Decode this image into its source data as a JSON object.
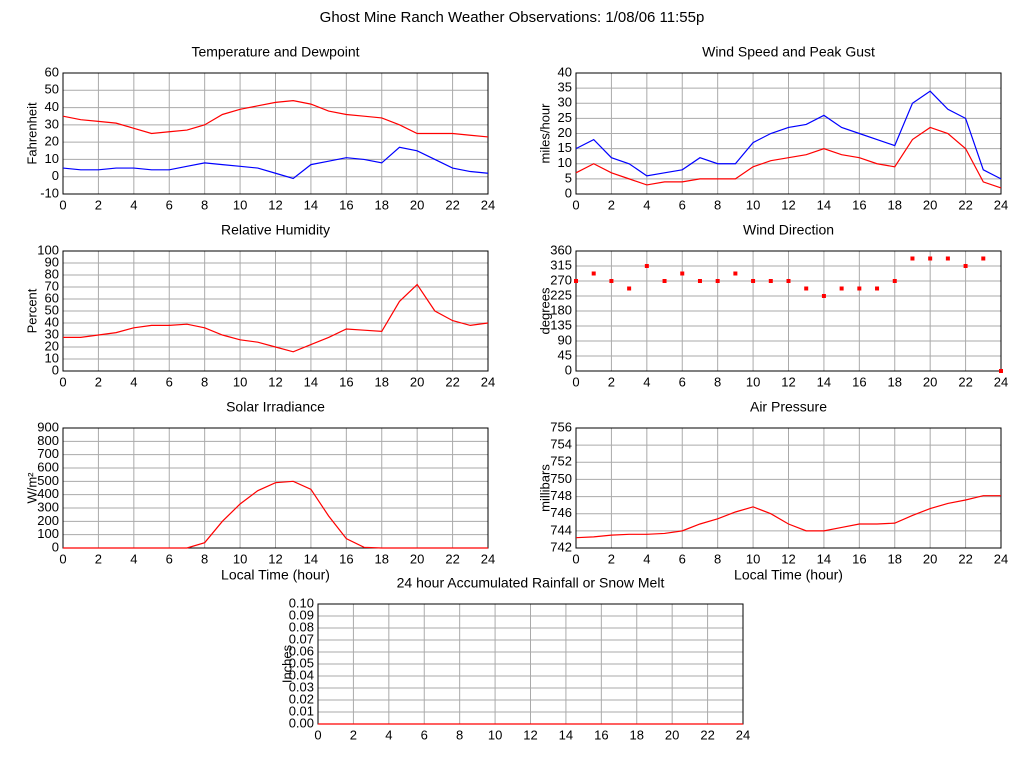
{
  "title": "Ghost Mine Ranch Weather Observations: 1/08/06 11:55p",
  "chart_data": [
    {
      "type": "line",
      "title": "Temperature and Dewpoint",
      "ylabel": "Fahrenheit",
      "x": [
        0,
        1,
        2,
        3,
        4,
        5,
        6,
        7,
        8,
        9,
        10,
        11,
        12,
        13,
        14,
        15,
        16,
        17,
        18,
        19,
        20,
        21,
        22,
        23,
        24
      ],
      "series": [
        {
          "name": "Temperature",
          "color": "#ff0000",
          "values": [
            35,
            33,
            32,
            31,
            28,
            25,
            26,
            27,
            30,
            36,
            39,
            41,
            43,
            44,
            42,
            38,
            36,
            35,
            34,
            30,
            25,
            25,
            25,
            24,
            23
          ]
        },
        {
          "name": "Dewpoint",
          "color": "#0000ff",
          "values": [
            5,
            4,
            4,
            5,
            5,
            4,
            4,
            6,
            8,
            7,
            6,
            5,
            2,
            -1,
            7,
            9,
            11,
            10,
            8,
            17,
            15,
            10,
            5,
            3,
            2
          ]
        }
      ],
      "xlim": [
        0,
        24
      ],
      "xticks": [
        0,
        2,
        4,
        6,
        8,
        10,
        12,
        14,
        16,
        18,
        20,
        22,
        24
      ],
      "ylim": [
        -10,
        60
      ],
      "yticks": [
        -10,
        0,
        10,
        20,
        30,
        40,
        50,
        60
      ],
      "grid": true
    },
    {
      "type": "line",
      "title": "Wind Speed and Peak Gust",
      "ylabel": "miles/hour",
      "x": [
        0,
        1,
        2,
        3,
        4,
        5,
        6,
        7,
        8,
        9,
        10,
        11,
        12,
        13,
        14,
        15,
        16,
        17,
        18,
        19,
        20,
        21,
        22,
        23,
        24
      ],
      "series": [
        {
          "name": "Peak Gust",
          "color": "#0000ff",
          "values": [
            15,
            18,
            12,
            10,
            6,
            7,
            8,
            12,
            10,
            10,
            17,
            20,
            22,
            23,
            26,
            22,
            20,
            18,
            16,
            30,
            34,
            28,
            25,
            8,
            5
          ]
        },
        {
          "name": "Wind Speed",
          "color": "#ff0000",
          "values": [
            7,
            10,
            7,
            5,
            3,
            4,
            4,
            5,
            5,
            5,
            9,
            11,
            12,
            13,
            15,
            13,
            12,
            10,
            9,
            18,
            22,
            20,
            15,
            4,
            2
          ]
        }
      ],
      "xlim": [
        0,
        24
      ],
      "xticks": [
        0,
        2,
        4,
        6,
        8,
        10,
        12,
        14,
        16,
        18,
        20,
        22,
        24
      ],
      "ylim": [
        0,
        40
      ],
      "yticks": [
        0,
        5,
        10,
        15,
        20,
        25,
        30,
        35,
        40
      ],
      "grid": true
    },
    {
      "type": "line",
      "title": "Relative Humidity",
      "ylabel": "Percent",
      "x": [
        0,
        1,
        2,
        3,
        4,
        5,
        6,
        7,
        8,
        9,
        10,
        11,
        12,
        13,
        14,
        15,
        16,
        17,
        18,
        19,
        20,
        21,
        22,
        23,
        24
      ],
      "series": [
        {
          "name": "Relative Humidity",
          "color": "#ff0000",
          "values": [
            28,
            28,
            30,
            32,
            36,
            38,
            38,
            39,
            36,
            30,
            26,
            24,
            20,
            16,
            22,
            28,
            35,
            34,
            33,
            58,
            72,
            50,
            42,
            38,
            40
          ]
        }
      ],
      "xlim": [
        0,
        24
      ],
      "xticks": [
        0,
        2,
        4,
        6,
        8,
        10,
        12,
        14,
        16,
        18,
        20,
        22,
        24
      ],
      "ylim": [
        0,
        100
      ],
      "yticks": [
        0,
        10,
        20,
        30,
        40,
        50,
        60,
        70,
        80,
        90,
        100
      ],
      "grid": true
    },
    {
      "type": "scatter",
      "title": "Wind Direction",
      "ylabel": "degrees",
      "x": [
        0,
        1,
        2,
        3,
        4,
        5,
        6,
        7,
        8,
        9,
        10,
        11,
        12,
        13,
        14,
        15,
        16,
        17,
        18,
        19,
        20,
        21,
        22,
        23,
        24
      ],
      "series": [
        {
          "name": "Wind Direction",
          "color": "#ff0000",
          "values": [
            270,
            292.5,
            270,
            247.5,
            315,
            270,
            292.5,
            270,
            270,
            292.5,
            270,
            270,
            270,
            247.5,
            225,
            247.5,
            247.5,
            247.5,
            270,
            337.5,
            337.5,
            337.5,
            315,
            337.5,
            0
          ]
        }
      ],
      "xlim": [
        0,
        24
      ],
      "xticks": [
        0,
        2,
        4,
        6,
        8,
        10,
        12,
        14,
        16,
        18,
        20,
        22,
        24
      ],
      "ylim": [
        0,
        360
      ],
      "yticks": [
        0,
        45,
        90,
        135,
        180,
        225,
        270,
        315,
        360
      ],
      "grid": true
    },
    {
      "type": "line",
      "title": "Solar Irradiance",
      "ylabel": "W/m²",
      "xlabel": "Local Time (hour)",
      "x": [
        0,
        1,
        2,
        3,
        4,
        5,
        6,
        7,
        8,
        9,
        10,
        11,
        12,
        13,
        14,
        15,
        16,
        17,
        18,
        19,
        20,
        21,
        22,
        23,
        24
      ],
      "series": [
        {
          "name": "Solar Irradiance",
          "color": "#ff0000",
          "values": [
            0,
            0,
            0,
            0,
            0,
            0,
            0,
            0,
            40,
            200,
            330,
            430,
            490,
            500,
            440,
            240,
            70,
            5,
            0,
            0,
            0,
            0,
            0,
            0,
            0
          ]
        }
      ],
      "xlim": [
        0,
        24
      ],
      "xticks": [
        0,
        2,
        4,
        6,
        8,
        10,
        12,
        14,
        16,
        18,
        20,
        22,
        24
      ],
      "ylim": [
        0,
        900
      ],
      "yticks": [
        0,
        100,
        200,
        300,
        400,
        500,
        600,
        700,
        800,
        900
      ],
      "grid": true
    },
    {
      "type": "line",
      "title": "Air Pressure",
      "ylabel": "millibars",
      "xlabel": "Local Time (hour)",
      "x": [
        0,
        1,
        2,
        3,
        4,
        5,
        6,
        7,
        8,
        9,
        10,
        11,
        12,
        13,
        14,
        15,
        16,
        17,
        18,
        19,
        20,
        21,
        22,
        23,
        24
      ],
      "series": [
        {
          "name": "Air Pressure",
          "color": "#ff0000",
          "values": [
            743.2,
            743.3,
            743.5,
            743.6,
            743.6,
            743.7,
            744.0,
            744.8,
            745.4,
            746.2,
            746.8,
            746.0,
            744.8,
            744.0,
            744.0,
            744.4,
            744.8,
            744.8,
            744.9,
            745.8,
            746.6,
            747.2,
            747.6,
            748.1,
            748.1
          ]
        }
      ],
      "xlim": [
        0,
        24
      ],
      "xticks": [
        0,
        2,
        4,
        6,
        8,
        10,
        12,
        14,
        16,
        18,
        20,
        22,
        24
      ],
      "ylim": [
        742,
        756
      ],
      "yticks": [
        742,
        744,
        746,
        748,
        750,
        752,
        754,
        756
      ],
      "grid": true
    },
    {
      "type": "line",
      "title": "24 hour Accumulated Rainfall or Snow Melt",
      "ylabel": "Inches",
      "x": [
        0,
        24
      ],
      "series": [
        {
          "name": "Rainfall",
          "color": "#ff0000",
          "values": [
            0,
            0
          ]
        }
      ],
      "xlim": [
        0,
        24
      ],
      "xticks": [
        0,
        2,
        4,
        6,
        8,
        10,
        12,
        14,
        16,
        18,
        20,
        22,
        24
      ],
      "ylim": [
        0,
        0.1
      ],
      "yticks": [
        {
          "value": 0,
          "label": "0.00"
        },
        {
          "value": 0.01,
          "label": "0.01"
        },
        {
          "value": 0.02,
          "label": "0.02"
        },
        {
          "value": 0.03,
          "label": "0.03"
        },
        {
          "value": 0.04,
          "label": "0.04"
        },
        {
          "value": 0.05,
          "label": "0.05"
        },
        {
          "value": 0.06,
          "label": "0.06"
        },
        {
          "value": 0.07,
          "label": "0.07"
        },
        {
          "value": 0.08,
          "label": "0.08"
        },
        {
          "value": 0.09,
          "label": "0.09"
        },
        {
          "value": 0.1,
          "label": "0.10"
        }
      ],
      "grid": true
    }
  ]
}
